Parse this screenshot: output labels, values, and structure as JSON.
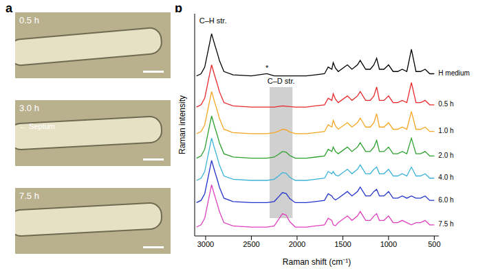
{
  "panel_labels": [
    "a",
    "b"
  ],
  "images": [
    {
      "label": "0.5 h"
    },
    {
      "label": "3.0 h",
      "annotation": "Septum"
    },
    {
      "label": "7.5 h"
    }
  ],
  "chart_data": {
    "type": "line",
    "x_label": "Raman shift (cm⁻¹)",
    "y_label": "Raman intensity",
    "tick_labels": "x",
    "xlim": [
      3120,
      450
    ],
    "xticks": [
      3000,
      2500,
      2000,
      1500,
      1000,
      500
    ],
    "ylim": [
      0,
      100
    ],
    "yticks": [],
    "x": [
      3100,
      3050,
      3010,
      2960,
      2935,
      2900,
      2870,
      2850,
      2800,
      2700,
      2500,
      2330,
      2250,
      2200,
      2160,
      2120,
      2080,
      2020,
      1900,
      1800,
      1700,
      1660,
      1620,
      1605,
      1580,
      1550,
      1450,
      1400,
      1340,
      1310,
      1250,
      1200,
      1160,
      1130,
      1100,
      1050,
      1000,
      950,
      900,
      850,
      800,
      750,
      700,
      650,
      600,
      550,
      500
    ],
    "series": [
      {
        "name": "H medium",
        "color": "#000000",
        "values": [
          72,
          73,
          76,
          86,
          91,
          86,
          82,
          79,
          74,
          72.5,
          72,
          73,
          72,
          72,
          72,
          72,
          72,
          72,
          72,
          72.5,
          73,
          76,
          75,
          78,
          75.5,
          74,
          77,
          75,
          77,
          79,
          75,
          75,
          77,
          80,
          75,
          75,
          77,
          74,
          74,
          75,
          74,
          84,
          74,
          74,
          75,
          73,
          73
        ]
      },
      {
        "name": "0.5 h",
        "color": "#e8282b",
        "values": [
          58,
          59,
          62,
          72,
          77,
          72,
          68,
          65,
          60,
          58.5,
          58,
          58,
          58,
          58.3,
          58.5,
          58.4,
          58.2,
          58,
          58,
          58.5,
          59,
          62,
          61,
          64,
          61.5,
          60,
          63,
          61,
          63,
          65,
          61,
          61,
          63,
          67,
          61,
          61,
          63,
          60,
          60,
          61,
          60,
          69,
          60,
          60,
          61,
          59,
          59
        ]
      },
      {
        "name": "1.0 h",
        "color": "#f5a623",
        "values": [
          46,
          47,
          50,
          60,
          65,
          60,
          56,
          53,
          48,
          46.5,
          46,
          46,
          46.5,
          47.2,
          48,
          47.8,
          46.8,
          46,
          46,
          46.5,
          47,
          50,
          49,
          52,
          49.5,
          48,
          51,
          49,
          51,
          53,
          49,
          49,
          51,
          55,
          49,
          49,
          51,
          48,
          48,
          49,
          48,
          56,
          48,
          48,
          49,
          47,
          47
        ]
      },
      {
        "name": "2.0 h",
        "color": "#2ca02c",
        "values": [
          35,
          36,
          39,
          49,
          54,
          49,
          45,
          42,
          37,
          35.5,
          35,
          35,
          35.5,
          36.8,
          38,
          37.7,
          36.2,
          35,
          35,
          35.5,
          36,
          39,
          38,
          40,
          38,
          37,
          40,
          38,
          40,
          42,
          38,
          38,
          40,
          43,
          38,
          38,
          40,
          37,
          37,
          38,
          37,
          44,
          37,
          37,
          38,
          36,
          36
        ]
      },
      {
        "name": "4.0 h",
        "color": "#3bb3d8",
        "values": [
          25,
          26,
          29,
          39,
          44,
          39,
          35,
          32,
          27,
          25.5,
          25,
          25,
          25.5,
          27.1,
          28.5,
          28.2,
          26.4,
          25,
          25,
          25.5,
          26,
          29,
          28,
          29,
          27.4,
          27,
          30,
          28,
          30,
          32,
          28,
          28,
          30,
          31,
          28,
          28,
          30,
          27,
          27,
          28,
          27,
          31,
          27,
          27,
          28,
          26,
          26
        ]
      },
      {
        "name": "6.0 h",
        "color": "#2233cc",
        "values": [
          15,
          16,
          19,
          29,
          34,
          29,
          25,
          22,
          17,
          15.5,
          15,
          15,
          15.5,
          17.7,
          19.5,
          19.1,
          16.8,
          15,
          15,
          15.5,
          16,
          19,
          18,
          17,
          16.2,
          17,
          20,
          18,
          20,
          22,
          18,
          18,
          20,
          21,
          18,
          18,
          20,
          17,
          17,
          18,
          17,
          18,
          17,
          17,
          18,
          16,
          16
        ]
      },
      {
        "name": "7.5 h",
        "color": "#e040c0",
        "values": [
          4,
          5,
          8,
          18,
          23,
          18,
          14,
          11,
          6,
          4.5,
          4,
          4,
          4.5,
          7.6,
          10,
          9.4,
          6.4,
          4,
          4,
          4.5,
          5,
          8,
          7,
          5,
          4.6,
          6,
          9,
          7,
          9,
          11,
          7,
          7,
          9,
          10,
          7,
          7,
          9,
          6,
          6,
          7,
          6,
          5,
          6,
          6,
          7,
          5,
          5
        ]
      }
    ],
    "shaded_region": {
      "x": [
        2300,
        2050
      ],
      "y": [
        8,
        67
      ],
      "label": "C–D str."
    },
    "annotations": [
      {
        "text": "C–H str.",
        "x": 2920,
        "y": 97
      },
      {
        "text": "*",
        "x": 2330,
        "y": 75.5
      }
    ]
  }
}
